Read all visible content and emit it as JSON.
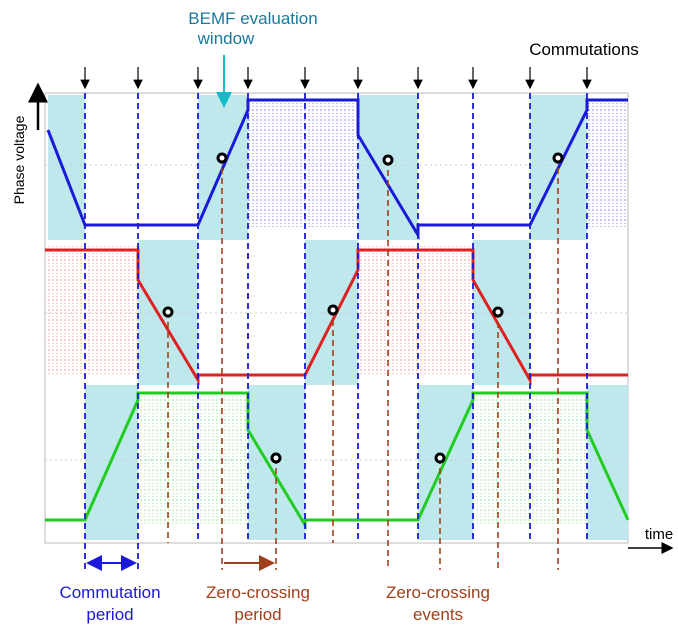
{
  "annotations": {
    "bemf_window": [
      "BEMF evaluation",
      "window"
    ],
    "commutations": "Commutations",
    "y_axis": "Phase voltage",
    "x_axis": "time",
    "commutation_period": [
      "Commutation",
      "period"
    ],
    "zero_crossing_period": [
      "Zero-crossing",
      "period"
    ],
    "zero_crossing_events": [
      "Zero-crossing",
      "events"
    ]
  }
}
